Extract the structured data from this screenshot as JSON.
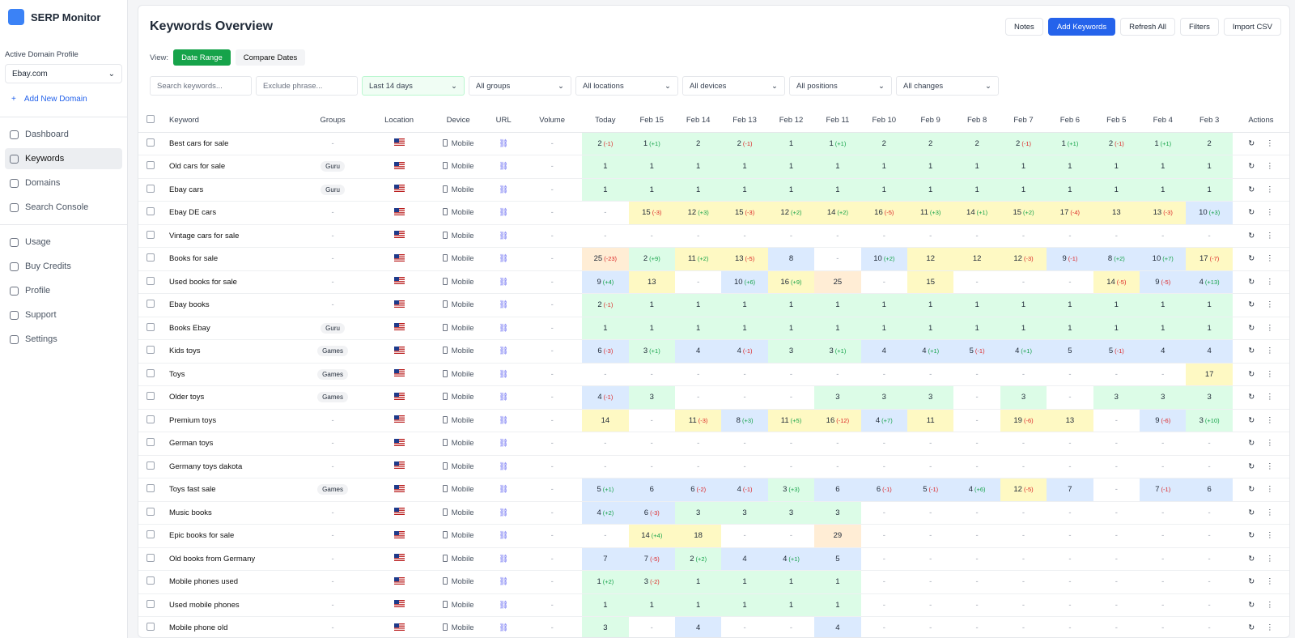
{
  "sidebar": {
    "app_name": "SERP Monitor",
    "profile_label": "Active Domain Profile",
    "domain": "Ebay.com",
    "add_domain": "Add New Domain",
    "nav": [
      "Dashboard",
      "Keywords",
      "Domains",
      "Search Console"
    ],
    "nav2": [
      "Usage",
      "Buy Credits",
      "Profile",
      "Support",
      "Settings"
    ]
  },
  "header": {
    "title": "Keywords Overview",
    "buttons": [
      "Notes",
      "Add Keywords",
      "Refresh All",
      "Filters",
      "Import CSV"
    ],
    "view_label": "View:",
    "view_modes": [
      "Date Range",
      "Compare Dates"
    ]
  },
  "filters": {
    "search": "Search keywords...",
    "exclude": "Exclude phrase...",
    "dropdowns": [
      "Last 14 days",
      "All groups",
      "All locations",
      "All devices",
      "All positions",
      "All changes"
    ]
  },
  "table": {
    "columns": [
      "Keyword",
      "Groups",
      "Location",
      "Device",
      "URL",
      "Volume"
    ],
    "dates": [
      "Today",
      "Feb 15",
      "Feb 14",
      "Feb 13",
      "Feb 12",
      "Feb 11",
      "Feb 10",
      "Feb 9",
      "Feb 8",
      "Feb 7",
      "Feb 6",
      "Feb 5",
      "Feb 4",
      "Feb 3"
    ],
    "actions": "Actions",
    "rows": [
      {
        "keyword": "Best cars for sale",
        "group": "-",
        "device": "Mobile",
        "volume": "-",
        "ranks": [
          [
            "2",
            "(-1)"
          ],
          [
            "1",
            "(+1)"
          ],
          [
            "2"
          ],
          [
            "2",
            "(-1)"
          ],
          [
            "1"
          ],
          [
            "1",
            "(+1)"
          ],
          [
            "2"
          ],
          [
            "2"
          ],
          [
            "2"
          ],
          [
            "2",
            "(-1)"
          ],
          [
            "1",
            "(+1)"
          ],
          [
            "2",
            "(-1)"
          ],
          [
            "1",
            "(+1)"
          ],
          [
            "2"
          ]
        ]
      },
      {
        "keyword": "Old cars for sale",
        "group": "Guru",
        "device": "Mobile",
        "volume": "-",
        "ranks": [
          [
            "1"
          ],
          [
            "1"
          ],
          [
            "1"
          ],
          [
            "1"
          ],
          [
            "1"
          ],
          [
            "1"
          ],
          [
            "1"
          ],
          [
            "1"
          ],
          [
            "1"
          ],
          [
            "1"
          ],
          [
            "1"
          ],
          [
            "1"
          ],
          [
            "1"
          ],
          [
            "1"
          ]
        ]
      },
      {
        "keyword": "Ebay cars",
        "group": "Guru",
        "device": "Mobile",
        "volume": "-",
        "ranks": [
          [
            "1"
          ],
          [
            "1"
          ],
          [
            "1"
          ],
          [
            "1"
          ],
          [
            "1"
          ],
          [
            "1"
          ],
          [
            "1"
          ],
          [
            "1"
          ],
          [
            "1"
          ],
          [
            "1"
          ],
          [
            "1"
          ],
          [
            "1"
          ],
          [
            "1"
          ],
          [
            "1"
          ]
        ]
      },
      {
        "keyword": "Ebay DE cars",
        "group": "-",
        "device": "Mobile",
        "volume": "-",
        "ranks": [
          [
            "-"
          ],
          [
            "15",
            "(-3)"
          ],
          [
            "12",
            "(+3)"
          ],
          [
            "15",
            "(-3)"
          ],
          [
            "12",
            "(+2)"
          ],
          [
            "14",
            "(+2)"
          ],
          [
            "16",
            "(-5)"
          ],
          [
            "11",
            "(+3)"
          ],
          [
            "14",
            "(+1)"
          ],
          [
            "15",
            "(+2)"
          ],
          [
            "17",
            "(-4)"
          ],
          [
            "13"
          ],
          [
            "13",
            "(-3)"
          ],
          [
            "10",
            "(+3)"
          ]
        ]
      },
      {
        "keyword": "Vintage cars for sale",
        "group": "-",
        "device": "Mobile",
        "volume": "-",
        "ranks": [
          [
            "-"
          ],
          [
            "-"
          ],
          [
            "-"
          ],
          [
            "-"
          ],
          [
            "-"
          ],
          [
            "-"
          ],
          [
            "-"
          ],
          [
            "-"
          ],
          [
            "-"
          ],
          [
            "-"
          ],
          [
            "-"
          ],
          [
            "-"
          ],
          [
            "-"
          ],
          [
            "-"
          ]
        ]
      },
      {
        "keyword": "Books for sale",
        "group": "-",
        "device": "Mobile",
        "volume": "-",
        "ranks": [
          [
            "25",
            "(-23)"
          ],
          [
            "2",
            "(+9)"
          ],
          [
            "11",
            "(+2)"
          ],
          [
            "13",
            "(-5)"
          ],
          [
            "8"
          ],
          [
            "-"
          ],
          [
            "10",
            "(+2)"
          ],
          [
            "12"
          ],
          [
            "12"
          ],
          [
            "12",
            "(-3)"
          ],
          [
            "9",
            "(-1)"
          ],
          [
            "8",
            "(+2)"
          ],
          [
            "10",
            "(+7)"
          ],
          [
            "17",
            "(-7)"
          ]
        ]
      },
      {
        "keyword": "Used books for sale",
        "group": "-",
        "device": "Mobile",
        "volume": "-",
        "ranks": [
          [
            "9",
            "(+4)"
          ],
          [
            "13"
          ],
          [
            "-"
          ],
          [
            "10",
            "(+6)"
          ],
          [
            "16",
            "(+9)"
          ],
          [
            "25"
          ],
          [
            "-"
          ],
          [
            "15"
          ],
          [
            "-"
          ],
          [
            "-"
          ],
          [
            "-"
          ],
          [
            "14",
            "(-5)"
          ],
          [
            "9",
            "(-5)"
          ],
          [
            "4",
            "(+13)"
          ]
        ]
      },
      {
        "keyword": "Ebay books",
        "group": "-",
        "device": "Mobile",
        "volume": "-",
        "ranks": [
          [
            "2",
            "(-1)"
          ],
          [
            "1"
          ],
          [
            "1"
          ],
          [
            "1"
          ],
          [
            "1"
          ],
          [
            "1"
          ],
          [
            "1"
          ],
          [
            "1"
          ],
          [
            "1"
          ],
          [
            "1"
          ],
          [
            "1"
          ],
          [
            "1"
          ],
          [
            "1"
          ],
          [
            "1"
          ]
        ]
      },
      {
        "keyword": "Books Ebay",
        "group": "Guru",
        "device": "Mobile",
        "volume": "-",
        "ranks": [
          [
            "1"
          ],
          [
            "1"
          ],
          [
            "1"
          ],
          [
            "1"
          ],
          [
            "1"
          ],
          [
            "1"
          ],
          [
            "1"
          ],
          [
            "1"
          ],
          [
            "1"
          ],
          [
            "1"
          ],
          [
            "1"
          ],
          [
            "1"
          ],
          [
            "1"
          ],
          [
            "1"
          ]
        ]
      },
      {
        "keyword": "Kids toys",
        "group": "Games",
        "device": "Mobile",
        "volume": "-",
        "ranks": [
          [
            "6",
            "(-3)"
          ],
          [
            "3",
            "(+1)"
          ],
          [
            "4"
          ],
          [
            "4",
            "(-1)"
          ],
          [
            "3"
          ],
          [
            "3",
            "(+1)"
          ],
          [
            "4"
          ],
          [
            "4",
            "(+1)"
          ],
          [
            "5",
            "(-1)"
          ],
          [
            "4",
            "(+1)"
          ],
          [
            "5"
          ],
          [
            "5",
            "(-1)"
          ],
          [
            "4"
          ],
          [
            "4"
          ]
        ]
      },
      {
        "keyword": "Toys",
        "group": "Games",
        "device": "Mobile",
        "volume": "-",
        "ranks": [
          [
            "-"
          ],
          [
            "-"
          ],
          [
            "-"
          ],
          [
            "-"
          ],
          [
            "-"
          ],
          [
            "-"
          ],
          [
            "-"
          ],
          [
            "-"
          ],
          [
            "-"
          ],
          [
            "-"
          ],
          [
            "-"
          ],
          [
            "-"
          ],
          [
            "-"
          ],
          [
            "17"
          ]
        ]
      },
      {
        "keyword": "Older toys",
        "group": "Games",
        "device": "Mobile",
        "volume": "-",
        "ranks": [
          [
            "4",
            "(-1)"
          ],
          [
            "3"
          ],
          [
            "-"
          ],
          [
            "-"
          ],
          [
            "-"
          ],
          [
            "3"
          ],
          [
            "3"
          ],
          [
            "3"
          ],
          [
            "-"
          ],
          [
            "3"
          ],
          [
            "-"
          ],
          [
            "3"
          ],
          [
            "3"
          ],
          [
            "3"
          ]
        ]
      },
      {
        "keyword": "Premium toys",
        "group": "-",
        "device": "Mobile",
        "volume": "-",
        "ranks": [
          [
            "14"
          ],
          [
            "-"
          ],
          [
            "11",
            "(-3)"
          ],
          [
            "8",
            "(+3)"
          ],
          [
            "11",
            "(+5)"
          ],
          [
            "16",
            "(-12)"
          ],
          [
            "4",
            "(+7)"
          ],
          [
            "11"
          ],
          [
            "-"
          ],
          [
            "19",
            "(-6)"
          ],
          [
            "13"
          ],
          [
            "-"
          ],
          [
            "9",
            "(-6)"
          ],
          [
            "3",
            "(+10)"
          ]
        ]
      },
      {
        "keyword": "German toys",
        "group": "-",
        "device": "Mobile",
        "volume": "-",
        "ranks": [
          [
            "-"
          ],
          [
            "-"
          ],
          [
            "-"
          ],
          [
            "-"
          ],
          [
            "-"
          ],
          [
            "-"
          ],
          [
            "-"
          ],
          [
            "-"
          ],
          [
            "-"
          ],
          [
            "-"
          ],
          [
            "-"
          ],
          [
            "-"
          ],
          [
            "-"
          ],
          [
            "-"
          ]
        ]
      },
      {
        "keyword": "Germany toys dakota",
        "group": "-",
        "device": "Mobile",
        "volume": "-",
        "ranks": [
          [
            "-"
          ],
          [
            "-"
          ],
          [
            "-"
          ],
          [
            "-"
          ],
          [
            "-"
          ],
          [
            "-"
          ],
          [
            "-"
          ],
          [
            "-"
          ],
          [
            "-"
          ],
          [
            "-"
          ],
          [
            "-"
          ],
          [
            "-"
          ],
          [
            "-"
          ],
          [
            "-"
          ]
        ]
      },
      {
        "keyword": "Toys fast sale",
        "group": "Games",
        "device": "Mobile",
        "volume": "-",
        "ranks": [
          [
            "5",
            "(+1)"
          ],
          [
            "6"
          ],
          [
            "6",
            "(-2)"
          ],
          [
            "4",
            "(-1)"
          ],
          [
            "3",
            "(+3)"
          ],
          [
            "6"
          ],
          [
            "6",
            "(-1)"
          ],
          [
            "5",
            "(-1)"
          ],
          [
            "4",
            "(+6)"
          ],
          [
            "12",
            "(-5)"
          ],
          [
            "7"
          ],
          [
            "-"
          ],
          [
            "7",
            "(-1)"
          ],
          [
            "6"
          ]
        ]
      },
      {
        "keyword": "Music books",
        "group": "-",
        "device": "Mobile",
        "volume": "-",
        "ranks": [
          [
            "4",
            "(+2)"
          ],
          [
            "6",
            "(-3)"
          ],
          [
            "3"
          ],
          [
            "3"
          ],
          [
            "3"
          ],
          [
            "3"
          ],
          [
            "-"
          ],
          [
            "-"
          ],
          [
            "-"
          ],
          [
            "-"
          ],
          [
            "-"
          ],
          [
            "-"
          ],
          [
            "-"
          ],
          [
            "-"
          ]
        ]
      },
      {
        "keyword": "Epic books for sale",
        "group": "-",
        "device": "Mobile",
        "volume": "-",
        "ranks": [
          [
            "-"
          ],
          [
            "14",
            "(+4)"
          ],
          [
            "18"
          ],
          [
            "-"
          ],
          [
            "-"
          ],
          [
            "29"
          ],
          [
            "-"
          ],
          [
            "-"
          ],
          [
            "-"
          ],
          [
            "-"
          ],
          [
            "-"
          ],
          [
            "-"
          ],
          [
            "-"
          ],
          [
            "-"
          ]
        ]
      },
      {
        "keyword": "Old books from Germany",
        "group": "-",
        "device": "Mobile",
        "volume": "-",
        "ranks": [
          [
            "7"
          ],
          [
            "7",
            "(-5)"
          ],
          [
            "2",
            "(+2)"
          ],
          [
            "4"
          ],
          [
            "4",
            "(+1)"
          ],
          [
            "5"
          ],
          [
            "-"
          ],
          [
            "-"
          ],
          [
            "-"
          ],
          [
            "-"
          ],
          [
            "-"
          ],
          [
            "-"
          ],
          [
            "-"
          ],
          [
            "-"
          ]
        ]
      },
      {
        "keyword": "Mobile phones used",
        "group": "-",
        "device": "Mobile",
        "volume": "-",
        "ranks": [
          [
            "1",
            "(+2)"
          ],
          [
            "3",
            "(-2)"
          ],
          [
            "1"
          ],
          [
            "1"
          ],
          [
            "1"
          ],
          [
            "1"
          ],
          [
            "-"
          ],
          [
            "-"
          ],
          [
            "-"
          ],
          [
            "-"
          ],
          [
            "-"
          ],
          [
            "-"
          ],
          [
            "-"
          ],
          [
            "-"
          ]
        ]
      },
      {
        "keyword": "Used mobile phones",
        "group": "-",
        "device": "Mobile",
        "volume": "-",
        "ranks": [
          [
            "1"
          ],
          [
            "1"
          ],
          [
            "1"
          ],
          [
            "1"
          ],
          [
            "1"
          ],
          [
            "1"
          ],
          [
            "-"
          ],
          [
            "-"
          ],
          [
            "-"
          ],
          [
            "-"
          ],
          [
            "-"
          ],
          [
            "-"
          ],
          [
            "-"
          ],
          [
            "-"
          ]
        ]
      },
      {
        "keyword": "Mobile phone old",
        "group": "-",
        "device": "Mobile",
        "volume": "-",
        "ranks": [
          [
            "3"
          ],
          [
            "-"
          ],
          [
            "4"
          ],
          [
            "-"
          ],
          [
            "-"
          ],
          [
            "4"
          ],
          [
            "-"
          ],
          [
            "-"
          ],
          [
            "-"
          ],
          [
            "-"
          ],
          [
            "-"
          ],
          [
            "-"
          ],
          [
            "-"
          ],
          [
            "-"
          ]
        ]
      }
    ]
  }
}
